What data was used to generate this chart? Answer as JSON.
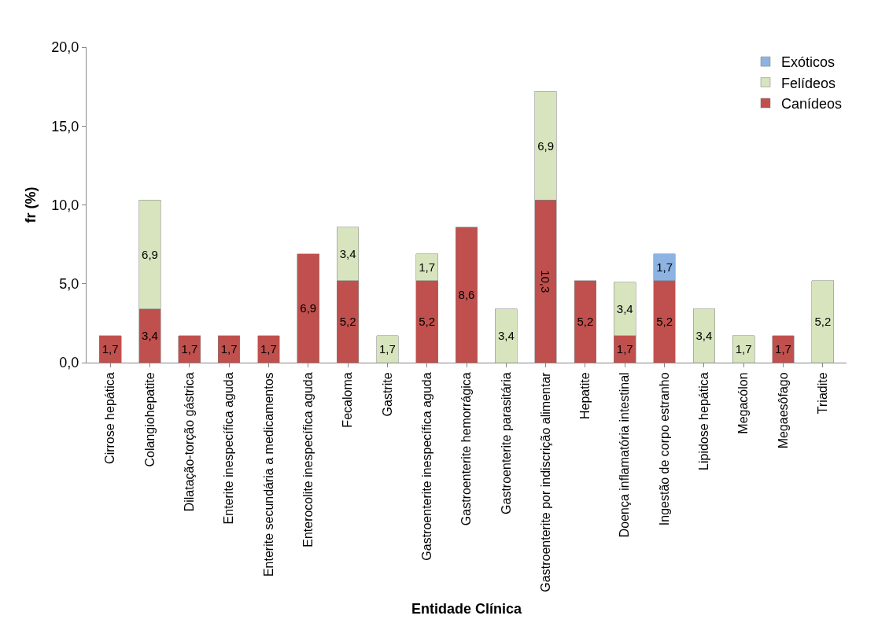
{
  "chart_data": {
    "type": "bar",
    "stacked": true,
    "xlabel": "Entidade Clínica",
    "ylabel": "fr (%)",
    "categories": [
      "Cirrose hepática",
      "Colangiohepatite",
      "Dilatação-torção gástrica",
      "Enterite inespecífica aguda",
      "Enterite secundária a medicamentos",
      "Enterocolite inespecífica aguda",
      "Fecaloma",
      "Gastrite",
      "Gastroenterite inespecífica aguda",
      "Gastroenterite hemorrágica",
      "Gastroenterite parasitária",
      "Gastroenterite por indiscrição alimentar",
      "Hepatite",
      "Doença inflamatória intestinal",
      "Ingestão de corpo estranho",
      "Lipidose hepática",
      "Megacólon",
      "Megaesôfago",
      "Triadite"
    ],
    "series": [
      {
        "name": "Canídeos",
        "color": "#c0504d",
        "values": [
          1.7,
          3.4,
          1.7,
          1.7,
          1.7,
          6.9,
          5.2,
          null,
          5.2,
          8.6,
          null,
          10.3,
          5.2,
          1.7,
          5.2,
          null,
          null,
          1.7,
          null
        ],
        "value_labels": [
          "1,7",
          "3,4",
          "1,7",
          "1,7",
          "1,7",
          "6,9",
          "5,2",
          null,
          "5,2",
          "8,6",
          null,
          "10,3",
          "5,2",
          "1,7",
          "5,2",
          null,
          null,
          "1,7",
          null
        ]
      },
      {
        "name": "Felídeos",
        "color": "#d7e4bd",
        "values": [
          null,
          6.9,
          null,
          null,
          null,
          null,
          3.4,
          1.7,
          1.7,
          null,
          3.4,
          6.9,
          null,
          3.4,
          null,
          3.4,
          1.7,
          null,
          5.2
        ],
        "value_labels": [
          null,
          "6,9",
          null,
          null,
          null,
          null,
          "3,4",
          "1,7",
          "1,7",
          null,
          "3,4",
          "6,9",
          null,
          "3,4",
          null,
          "3,4",
          "1,7",
          null,
          "5,2"
        ]
      },
      {
        "name": "Exóticos",
        "color": "#8db3e2",
        "values": [
          null,
          null,
          null,
          null,
          null,
          null,
          null,
          null,
          null,
          null,
          null,
          null,
          null,
          null,
          1.7,
          null,
          null,
          null,
          null
        ],
        "value_labels": [
          null,
          null,
          null,
          null,
          null,
          null,
          null,
          null,
          null,
          null,
          null,
          null,
          null,
          null,
          "1,7",
          null,
          null,
          null,
          null
        ]
      }
    ],
    "ylim": [
      0,
      20
    ],
    "yticks": [
      {
        "value": 0,
        "label": "0,0"
      },
      {
        "value": 5,
        "label": "5,0"
      },
      {
        "value": 10,
        "label": "10,0"
      },
      {
        "value": 15,
        "label": "15,0"
      },
      {
        "value": 20,
        "label": "20,0"
      }
    ],
    "grid": false,
    "legend": "top right"
  }
}
